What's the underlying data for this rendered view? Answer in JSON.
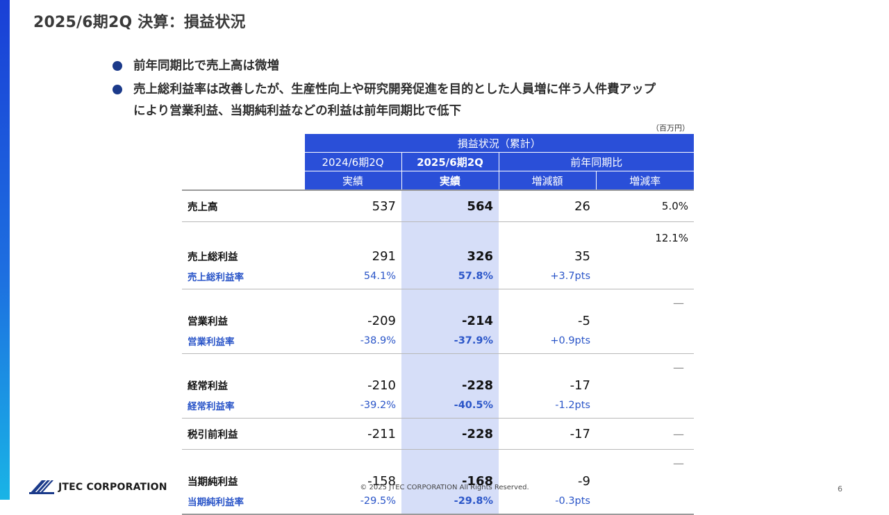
{
  "title": "2025/6期2Q 決算：損益状況",
  "bullets": [
    "前年同期比で売上高は微増",
    "売上総利益率は改善したが、生産性向上や研究開発促進を目的とした人員増に伴う人件費アップ",
    "により営業利益、当期純利益などの利益は前年同期比で低下"
  ],
  "unit": "（百万円）",
  "table": {
    "group_header": "損益状況（累計）",
    "col_prev": "2024/6期2Q",
    "col_curr": "2025/6期2Q",
    "col_yoy": "前年同期比",
    "sub_actual_prev": "実績",
    "sub_actual_curr": "実績",
    "sub_diff": "増減額",
    "sub_rate": "増減率",
    "rows": [
      {
        "label": "売上高",
        "prev": "537",
        "curr": "564",
        "diff": "26",
        "rate": "5.0%"
      },
      {
        "label": "売上総利益",
        "prev": "291",
        "curr": "326",
        "diff": "35",
        "rate": "12.1%",
        "sub_label": "売上総利益率",
        "sub_prev": "54.1%",
        "sub_curr": "57.8%",
        "sub_diff": "+3.7pts"
      },
      {
        "label": "営業利益",
        "prev": "-209",
        "curr": "-214",
        "diff": "-5",
        "rate": "—",
        "sub_label": "営業利益率",
        "sub_prev": "-38.9%",
        "sub_curr": "-37.9%",
        "sub_diff": "+0.9pts"
      },
      {
        "label": "経常利益",
        "prev": "-210",
        "curr": "-228",
        "diff": "-17",
        "rate": "—",
        "sub_label": "経常利益率",
        "sub_prev": "-39.2%",
        "sub_curr": "-40.5%",
        "sub_diff": "-1.2pts"
      },
      {
        "label": "税引前利益",
        "prev": "-211",
        "curr": "-228",
        "diff": "-17",
        "rate": "—"
      },
      {
        "label": "当期純利益",
        "prev": "-158",
        "curr": "-168",
        "diff": "-9",
        "rate": "—",
        "sub_label": "当期純利益率",
        "sub_prev": "-29.5%",
        "sub_curr": "-29.8%",
        "sub_diff": "-0.3pts"
      }
    ]
  },
  "footer": {
    "logo_text": "JTEC CORPORATION",
    "copyright": "© 2025 JTEC CORPORATION All Rights Reserved.",
    "page_number": "6"
  },
  "colors": {
    "accent_blue": "#2a4fd8",
    "highlight": "#d6def8",
    "sub_text": "#2a55c8"
  }
}
